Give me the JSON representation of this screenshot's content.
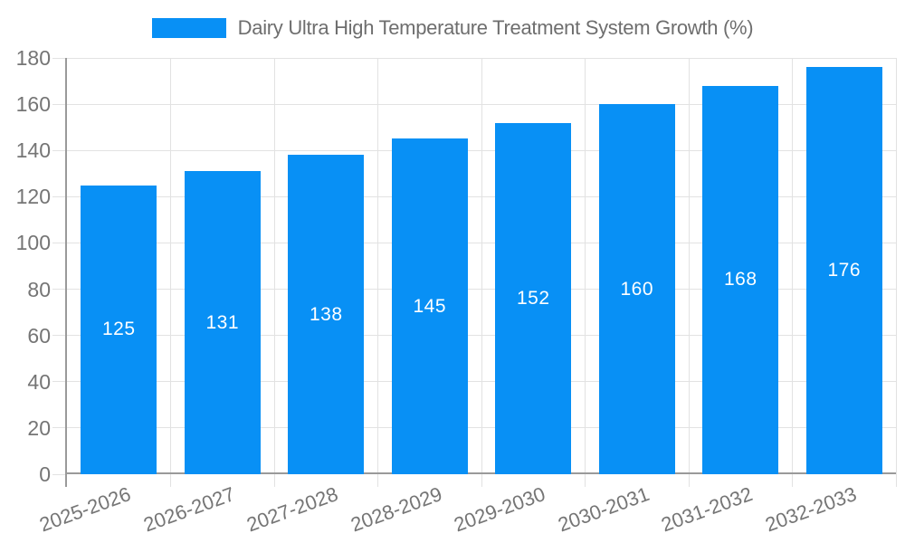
{
  "legend": {
    "label": "Dairy Ultra High Temperature Treatment System Growth (%)"
  },
  "chart_data": {
    "type": "bar",
    "title": "Dairy Ultra High Temperature Treatment System Growth (%)",
    "categories": [
      "2025-2026",
      "2026-2027",
      "2027-2028",
      "2028-2029",
      "2029-2030",
      "2030-2031",
      "2031-2032",
      "2032-2033"
    ],
    "values": [
      125,
      131,
      138,
      145,
      152,
      160,
      168,
      176
    ],
    "xlabel": "",
    "ylabel": "",
    "ylim": [
      0,
      180
    ],
    "ytick_interval": 20,
    "yticks": [
      0,
      20,
      40,
      60,
      80,
      100,
      120,
      140,
      160,
      180
    ],
    "grid": true,
    "legend_position": "top-center",
    "bar_labels_inside": true,
    "colors": {
      "bar": "#0890f5",
      "value_label": "#ffffff",
      "axis_text": "#757575",
      "legend_text": "#6e6e6e",
      "grid": "#e2e2e2",
      "axis_line": "#9a9a9a",
      "background": "#ffffff"
    }
  }
}
